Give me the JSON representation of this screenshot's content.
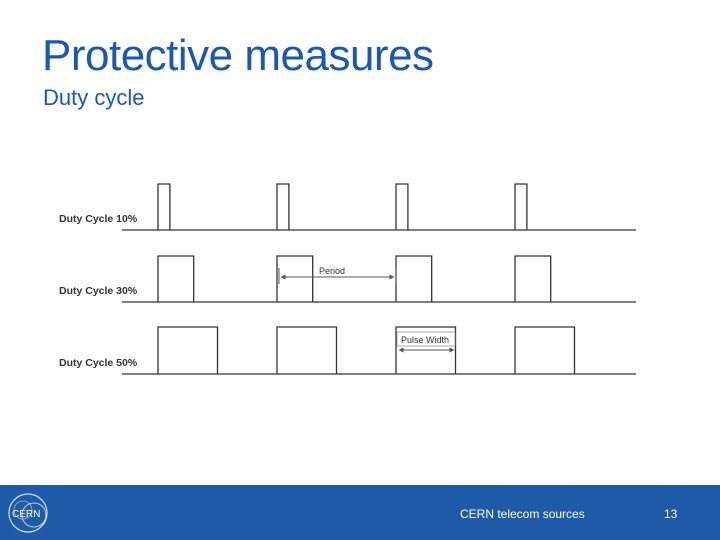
{
  "slide": {
    "title": "Protective measures",
    "subtitle": "Duty cycle",
    "source": "CERN telecom sources",
    "page_number": "13"
  },
  "logo": {
    "text": "CERN"
  },
  "diagram": {
    "rows": [
      {
        "label": "Duty Cycle 10%",
        "duty": 0.1
      },
      {
        "label": "Duty Cycle 30%",
        "duty": 0.3
      },
      {
        "label": "Duty Cycle 50%",
        "duty": 0.5
      }
    ],
    "period_label": "Period",
    "pulse_width_label": "Pulse Width",
    "pulses_per_row": 4
  },
  "colors": {
    "title": "#1a58b5",
    "footer": "#1e5aa8",
    "waveform": "#333333"
  }
}
